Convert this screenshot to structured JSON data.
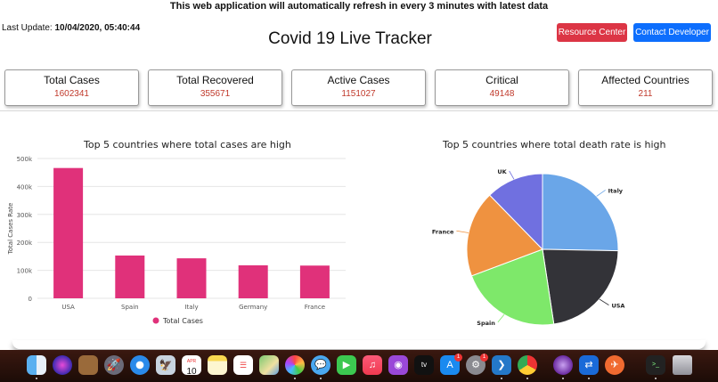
{
  "header": {
    "banner": "This web application will automatically refresh in every 3 minutes with latest data",
    "last_update_label": "Last Update:",
    "last_update_value": "10/04/2020, 05:40:44",
    "title": "Covid 19 Live Tracker",
    "resource_button": "Resource Center",
    "contact_button": "Contact Developer"
  },
  "stats": [
    {
      "label": "Total Cases",
      "value": "1602341"
    },
    {
      "label": "Total Recovered",
      "value": "355671"
    },
    {
      "label": "Active Cases",
      "value": "1151027"
    },
    {
      "label": "Critical",
      "value": "49148"
    },
    {
      "label": "Affected Countries",
      "value": "211"
    }
  ],
  "chart_data": [
    {
      "type": "bar",
      "title": "Top 5 countries where total cases are high",
      "ylabel": "Total Cases Rate",
      "xlabel": "",
      "categories": [
        "USA",
        "Spain",
        "Italy",
        "Germany",
        "France"
      ],
      "series": [
        {
          "name": "Total Cases",
          "values": [
            466000,
            153000,
            143000,
            118000,
            117000
          ],
          "color": "#e0317a"
        }
      ],
      "ylim": [
        0,
        500000
      ],
      "yticks": [
        0,
        100000,
        200000,
        300000,
        400000,
        500000
      ],
      "ytick_labels": [
        "0",
        "100k",
        "200k",
        "300k",
        "400k",
        "500k"
      ],
      "grid": true,
      "legend": "bottom"
    },
    {
      "type": "pie",
      "title": "Top 5 countries where total death rate is high",
      "labels": [
        "Italy",
        "USA",
        "Spain",
        "France",
        "UK"
      ],
      "values": [
        25.3,
        22.3,
        21.7,
        18.4,
        12.3
      ],
      "colors": [
        "#6aa6e8",
        "#333338",
        "#7ee86a",
        "#ef9240",
        "#7070e0"
      ]
    }
  ],
  "dock": {
    "calendar_month": "APR",
    "calendar_day": "10",
    "app_store_badge": "1",
    "settings_badge": "1"
  },
  "icons": [
    "finder-icon",
    "siri-icon",
    "launchpad-icon",
    "safari-icon",
    "calendar-icon",
    "notes-icon",
    "reminders-icon",
    "maps-icon",
    "photos-icon",
    "messages-icon",
    "facetime-icon",
    "music-icon",
    "podcasts-icon",
    "tv-icon",
    "app-store-icon",
    "system-preferences-icon",
    "vscode-icon",
    "chrome-icon",
    "tor-browser-icon",
    "teamviewer-icon",
    "postman-icon",
    "terminal-icon",
    "trash-icon"
  ]
}
